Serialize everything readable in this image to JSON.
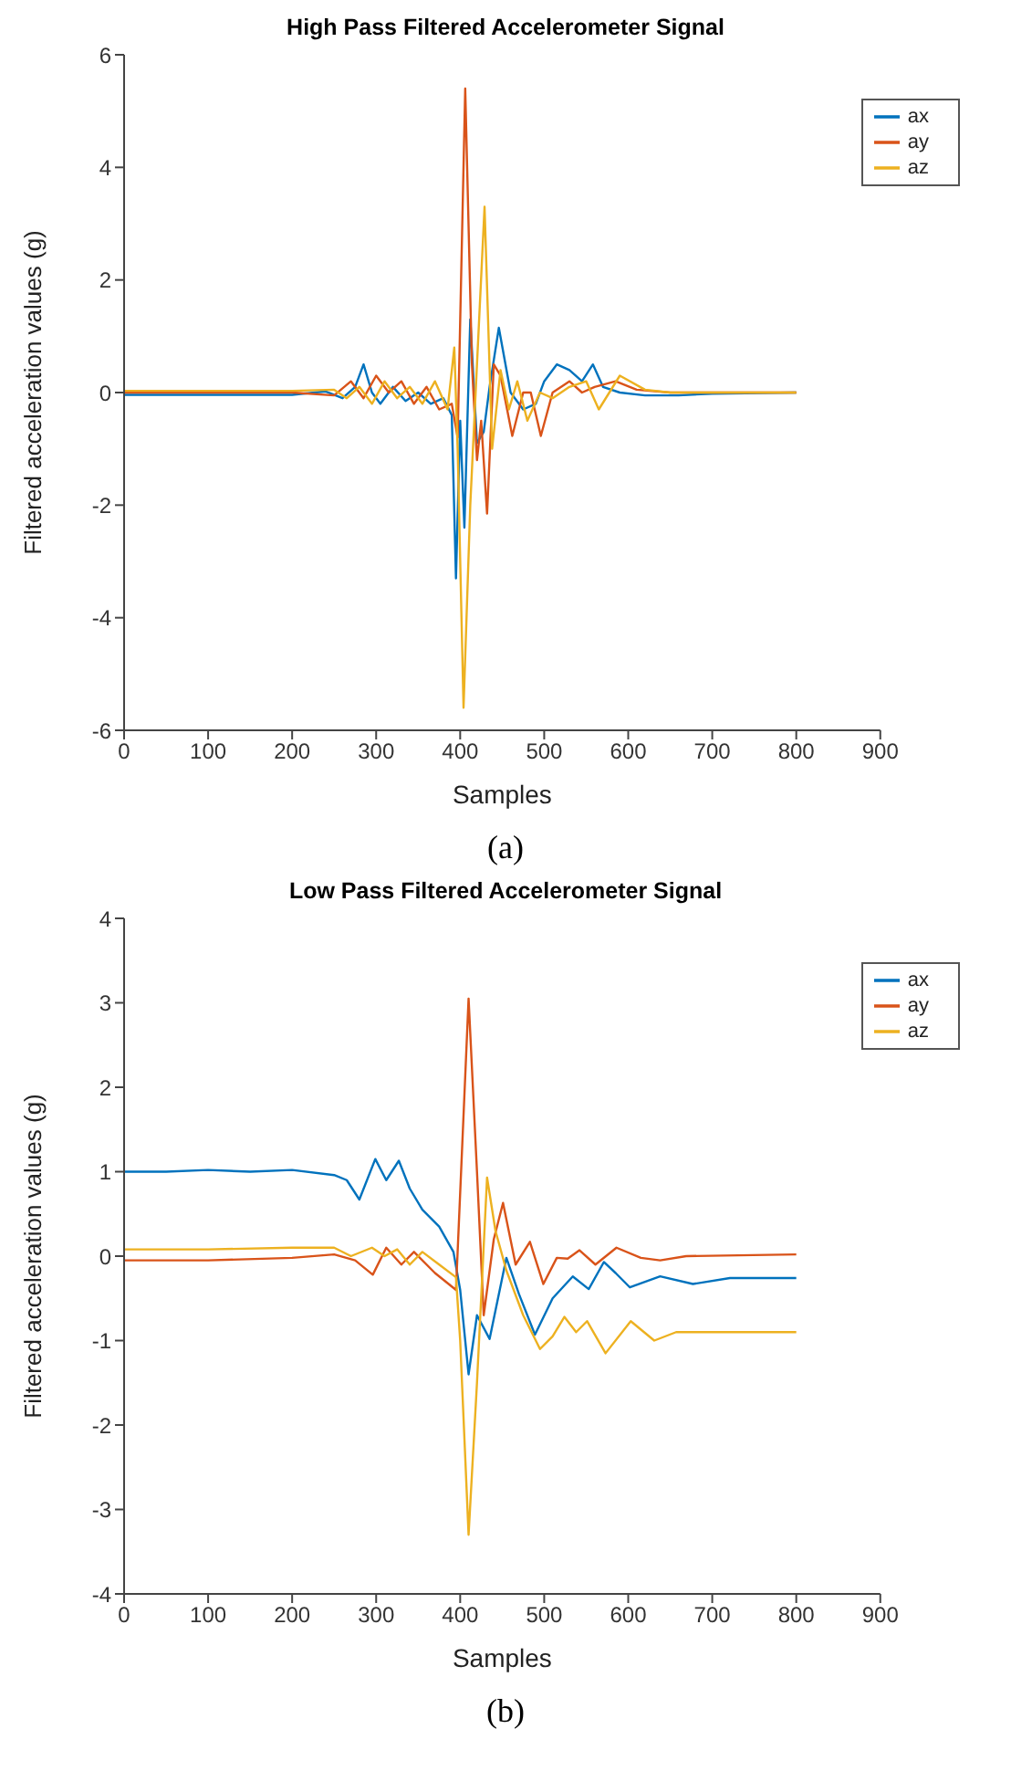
{
  "chart_data": [
    {
      "type": "line",
      "title": "High Pass Filtered Accelerometer Signal",
      "xlabel": "Samples",
      "ylabel": "Filtered acceleration values (g)",
      "annotations": [
        "(a)"
      ],
      "xlim": [
        0,
        900
      ],
      "xticks": [
        0,
        100,
        200,
        300,
        400,
        500,
        600,
        700,
        800,
        900
      ],
      "ylim": [
        -6,
        6
      ],
      "yticks": [
        -6,
        -4,
        -2,
        0,
        2,
        4,
        6
      ],
      "grid": false,
      "legend": "top right",
      "marker": "none",
      "line_style": "solid",
      "series": [
        {
          "name": "ax",
          "color": "#0072bd",
          "x": [
            0,
            100,
            200,
            240,
            260,
            275,
            285,
            295,
            305,
            320,
            335,
            350,
            365,
            380,
            390,
            395,
            400,
            405,
            412,
            420,
            428,
            435,
            446,
            460,
            475,
            490,
            500,
            515,
            530,
            545,
            558,
            570,
            590,
            620,
            660,
            700,
            800
          ],
          "values": [
            -0.04,
            -0.04,
            -0.04,
            0.02,
            -0.1,
            0.1,
            0.5,
            0,
            -0.2,
            0.1,
            -0.15,
            0,
            -0.2,
            -0.1,
            -0.4,
            -3.3,
            -0.5,
            -2.4,
            1.3,
            -0.9,
            -0.7,
            0.1,
            1.15,
            0,
            -0.3,
            -0.2,
            0.2,
            0.5,
            0.4,
            0.2,
            0.5,
            0.1,
            0,
            -0.05,
            -0.05,
            -0.02,
            0
          ]
        },
        {
          "name": "ay",
          "color": "#d95319",
          "x": [
            0,
            100,
            200,
            250,
            270,
            285,
            300,
            315,
            330,
            345,
            360,
            375,
            390,
            397,
            406,
            414,
            420,
            425,
            432,
            440,
            448,
            462,
            475,
            484,
            496,
            510,
            530,
            545,
            560,
            585,
            610,
            650,
            800
          ],
          "values": [
            0,
            0,
            0,
            -0.05,
            0.2,
            -0.1,
            0.3,
            0,
            0.2,
            -0.2,
            0.1,
            -0.3,
            -0.2,
            -0.8,
            5.4,
            0.5,
            -1.2,
            -0.5,
            -2.15,
            0.5,
            0.3,
            -0.77,
            0,
            0,
            -0.77,
            0,
            0.2,
            0,
            0.1,
            0.2,
            0.05,
            0,
            0
          ]
        },
        {
          "name": "az",
          "color": "#edb120",
          "x": [
            0,
            200,
            250,
            265,
            280,
            295,
            310,
            325,
            340,
            355,
            370,
            385,
            393,
            397,
            404,
            412,
            420,
            429,
            438,
            448,
            458,
            468,
            480,
            495,
            510,
            530,
            550,
            565,
            590,
            620,
            650,
            800
          ],
          "values": [
            0.03,
            0.03,
            0.05,
            -0.1,
            0.1,
            -0.2,
            0.2,
            -0.1,
            0.1,
            -0.2,
            0.2,
            -0.3,
            0.8,
            -1.0,
            -5.6,
            -2.0,
            0.5,
            3.3,
            -1.0,
            0.4,
            -0.3,
            0.2,
            -0.5,
            0,
            -0.1,
            0.1,
            0.2,
            -0.3,
            0.3,
            0.05,
            0,
            0
          ]
        }
      ]
    },
    {
      "type": "line",
      "title": "Low Pass Filtered Accelerometer Signal",
      "xlabel": "Samples",
      "ylabel": "Filtered acceleration values (g)",
      "annotations": [
        "(b)"
      ],
      "xlim": [
        0,
        900
      ],
      "xticks": [
        0,
        100,
        200,
        300,
        400,
        500,
        600,
        700,
        800,
        900
      ],
      "ylim": [
        -4,
        4
      ],
      "yticks": [
        -4,
        -3,
        -2,
        -1,
        0,
        1,
        2,
        3,
        4
      ],
      "grid": false,
      "legend": "top right",
      "marker": "none",
      "line_style": "solid",
      "series": [
        {
          "name": "ax",
          "color": "#0072bd",
          "x": [
            0,
            50,
            100,
            150,
            200,
            250,
            265,
            280,
            299,
            312,
            327,
            340,
            355,
            375,
            392,
            400,
            410,
            420,
            435,
            455,
            470,
            489,
            510,
            534,
            553,
            571,
            585,
            602,
            638,
            677,
            721,
            800
          ],
          "values": [
            1.0,
            1.0,
            1.02,
            1.0,
            1.02,
            0.96,
            0.9,
            0.67,
            1.15,
            0.9,
            1.13,
            0.8,
            0.55,
            0.35,
            0.05,
            -0.4,
            -1.4,
            -0.7,
            -0.98,
            -0.02,
            -0.45,
            -0.93,
            -0.5,
            -0.24,
            -0.39,
            -0.07,
            -0.2,
            -0.37,
            -0.24,
            -0.33,
            -0.26,
            -0.26
          ]
        },
        {
          "name": "ay",
          "color": "#d95319",
          "x": [
            0,
            100,
            200,
            250,
            275,
            296,
            312,
            330,
            345,
            370,
            395,
            410,
            420,
            428,
            440,
            451,
            466,
            483,
            499,
            515,
            528,
            542,
            561,
            586,
            615,
            638,
            669,
            800
          ],
          "values": [
            -0.05,
            -0.05,
            -0.02,
            0.02,
            -0.05,
            -0.22,
            0.1,
            -0.1,
            0.05,
            -0.2,
            -0.4,
            3.05,
            1.0,
            -0.7,
            0.2,
            0.63,
            -0.1,
            0.17,
            -0.33,
            -0.02,
            -0.03,
            0.07,
            -0.1,
            0.1,
            -0.02,
            -0.05,
            0,
            0.02
          ]
        },
        {
          "name": "az",
          "color": "#edb120",
          "x": [
            0,
            100,
            200,
            250,
            270,
            295,
            310,
            325,
            340,
            355,
            375,
            395,
            400,
            410,
            420,
            432,
            442,
            455,
            475,
            495,
            510,
            524,
            538,
            551,
            573,
            603,
            631,
            657,
            800
          ],
          "values": [
            0.08,
            0.08,
            0.1,
            0.1,
            0,
            0.1,
            0,
            0.08,
            -0.1,
            0.05,
            -0.1,
            -0.25,
            -1.0,
            -3.3,
            -1.5,
            0.93,
            0.3,
            -0.17,
            -0.7,
            -1.1,
            -0.95,
            -0.72,
            -0.9,
            -0.77,
            -1.15,
            -0.77,
            -1.0,
            -0.9,
            -0.9
          ]
        }
      ]
    }
  ]
}
